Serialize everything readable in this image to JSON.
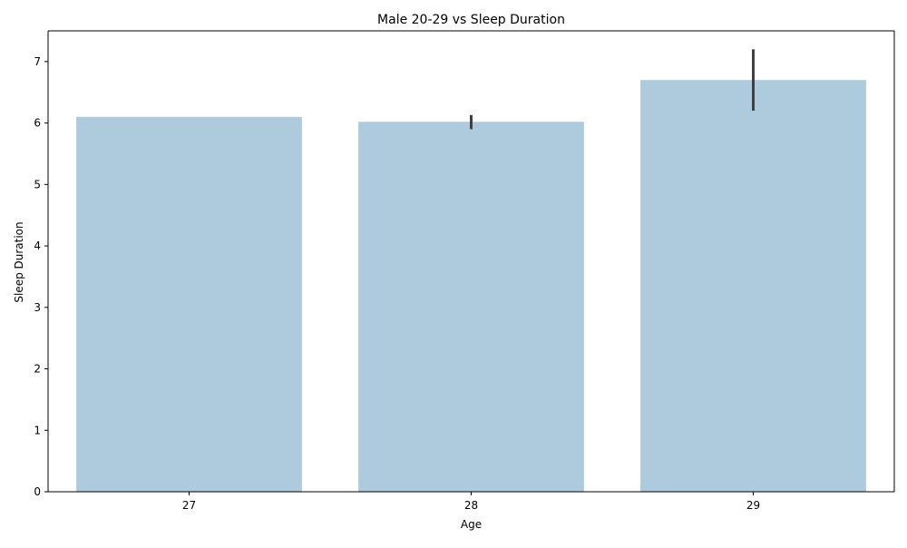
{
  "chart_data": {
    "type": "bar",
    "title": "Male 20-29 vs Sleep Duration",
    "xlabel": "Age",
    "ylabel": "Sleep Duration",
    "categories": [
      "27",
      "28",
      "29"
    ],
    "values": [
      6.1,
      6.02,
      6.7
    ],
    "error_bars": [
      {
        "low": 6.1,
        "high": 6.1
      },
      {
        "low": 5.9,
        "high": 6.13
      },
      {
        "low": 6.2,
        "high": 7.2
      }
    ],
    "ylim": [
      0,
      7.5
    ],
    "yticks": [
      0,
      1,
      2,
      3,
      4,
      5,
      6,
      7
    ],
    "grid": false,
    "legend": "none",
    "colors": {
      "bar": "#aecbdd",
      "error_bar": "#404040",
      "axis": "#000000"
    }
  }
}
